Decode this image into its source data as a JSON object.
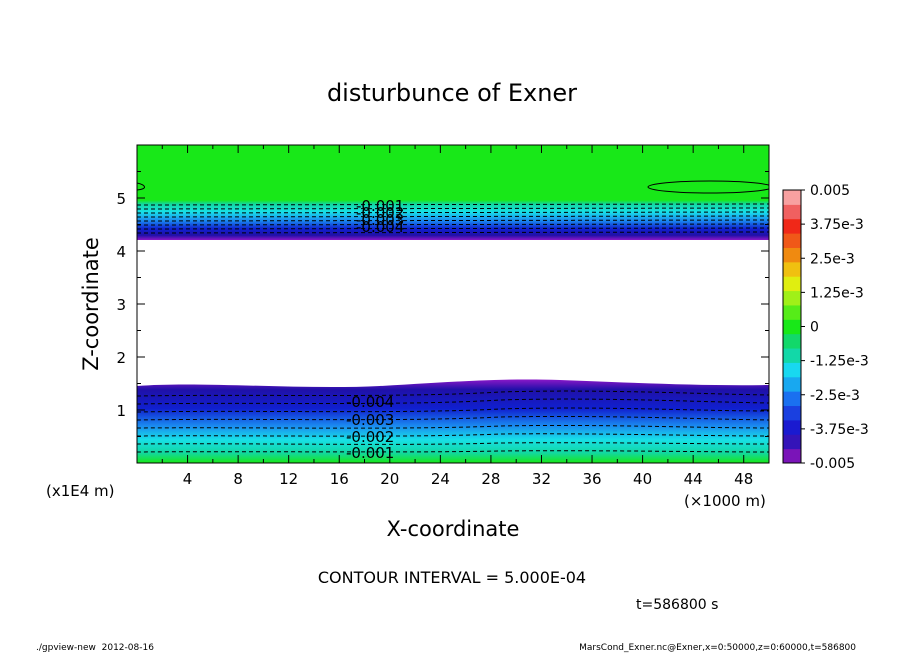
{
  "chart_data": {
    "type": "contour",
    "title": "disturbunce of Exner",
    "xlabel": "X-coordinate",
    "ylabel": "Z-coordinate",
    "x_unit": "(×1000 m)",
    "y_unit": "(x1E4 m)",
    "xlim": [
      0,
      50
    ],
    "ylim": [
      0,
      6
    ],
    "x_ticks": [
      "4",
      "8",
      "12",
      "16",
      "20",
      "24",
      "28",
      "32",
      "36",
      "40",
      "44",
      "48"
    ],
    "y_ticks": [
      "1",
      "2",
      "3",
      "4",
      "5"
    ],
    "contour_interval": "CONTOUR INTERVAL = 5.000E-04",
    "time_label": "t=586800 s",
    "colorbar": {
      "labels": [
        "0.005",
        "3.75e-3",
        "2.5e-3",
        "1.25e-3",
        "0",
        "-1.25e-3",
        "-2.5e-3",
        "-3.75e-3",
        "-0.005"
      ],
      "range": [
        -0.005,
        0.005
      ]
    },
    "upper_contour_labels": [
      "-0.001",
      "-0.002",
      "-0.003",
      "-0.004"
    ],
    "lower_contour_labels": [
      "-0.004",
      "-0.003",
      "-0.002",
      "-0.001"
    ]
  },
  "footer": {
    "left": "./gpview-new  2012-08-16",
    "right": "MarsCond_Exner.nc@Exner,x=0:50000,z=0:60000,t=586800"
  },
  "colors": {
    "green": "#18e818",
    "purple": "#8a18c8",
    "white": "#ffffff"
  }
}
